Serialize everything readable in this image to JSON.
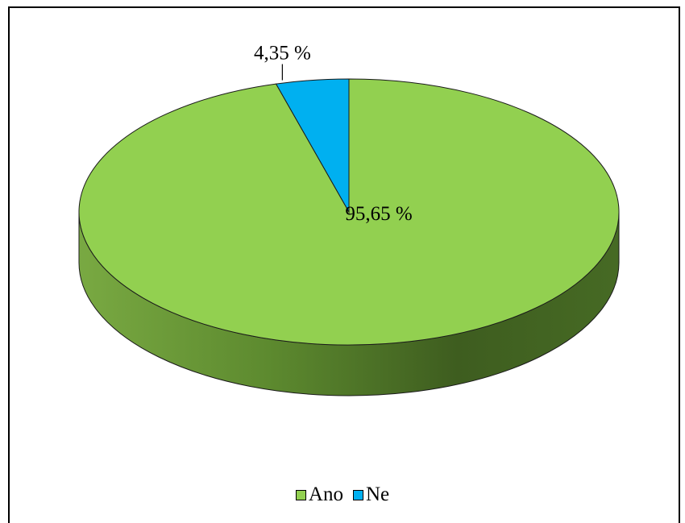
{
  "chart_data": {
    "type": "pie",
    "style": "3d",
    "categories": [
      "Ano",
      "Ne"
    ],
    "values": [
      95.65,
      4.35
    ],
    "data_labels": [
      "95,65 %",
      "4,35 %"
    ],
    "colors": [
      "#92d050",
      "#00b0f0"
    ],
    "title": "",
    "legend": "bottom"
  }
}
